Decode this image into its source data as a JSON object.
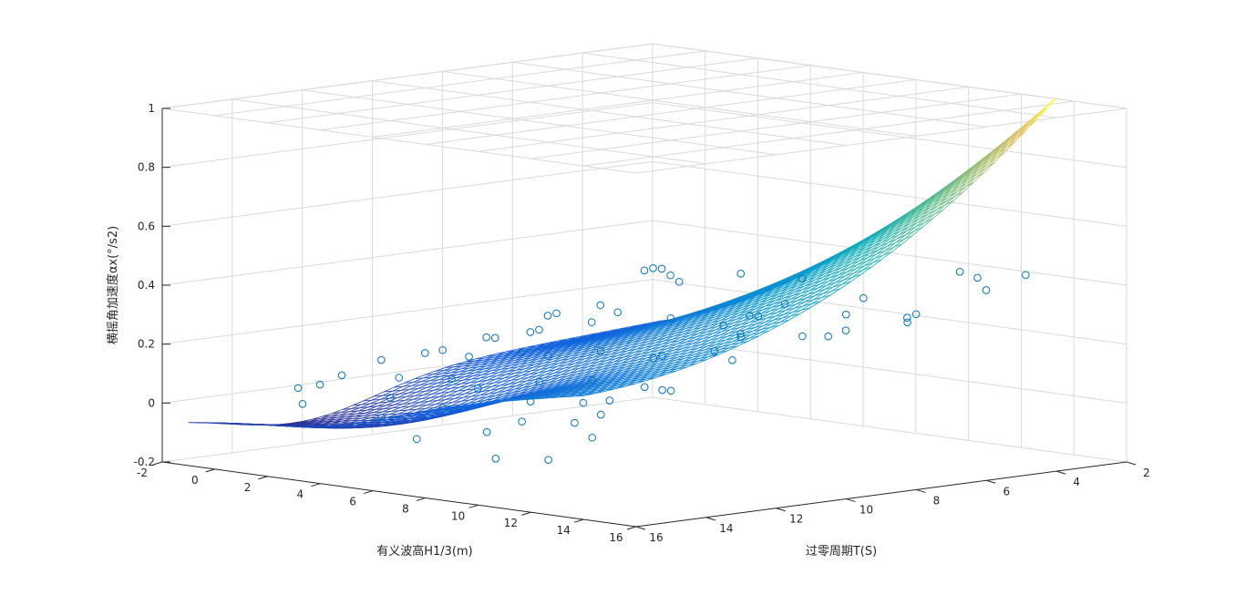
{
  "chart_data": {
    "type": "surface",
    "grid": true,
    "x_axis": {
      "label": "有义波高H1/3(m)",
      "range": [
        -2,
        16
      ],
      "ticks": [
        "-2",
        "0",
        "2",
        "4",
        "6",
        "8",
        "10",
        "12",
        "14",
        "16"
      ]
    },
    "y_axis": {
      "label": "过零周期T(S)",
      "range": [
        2,
        16
      ],
      "ticks": [
        "2",
        "4",
        "6",
        "8",
        "10",
        "12",
        "14",
        "16"
      ]
    },
    "z_axis": {
      "label": "横摇角加速度αx(°/s2)",
      "range": [
        -0.2,
        1
      ],
      "ticks": [
        "-0.2",
        "0",
        "0.2",
        "0.4",
        "0.6",
        "0.8",
        "1"
      ]
    },
    "surface": {
      "x_range": [
        -1,
        14
      ],
      "y_range": [
        2.5,
        16
      ],
      "colormap": "parula",
      "corner_values": {
        "x=-1,y=16": -0.09,
        "x=14,y=16": 0.04,
        "x=14,y=2.5": 1.0,
        "x=-1,y=2.5": 0.12
      }
    },
    "scatter": {
      "marker": "circle",
      "color": "#0072bd",
      "points": [
        [
          8,
          7,
          0.42
        ],
        [
          9,
          6,
          0.4
        ],
        [
          10,
          5,
          0.33
        ],
        [
          10,
          9,
          0.3
        ],
        [
          11,
          8,
          0.37
        ],
        [
          12,
          7,
          0.33
        ],
        [
          13,
          6,
          0.3
        ],
        [
          11,
          12,
          0.15
        ],
        [
          9,
          10,
          0.2
        ],
        [
          7,
          9,
          0.45
        ],
        [
          6,
          8,
          0.43
        ],
        [
          5,
          7,
          0.4
        ],
        [
          4,
          6,
          0.35
        ],
        [
          3,
          5,
          0.3
        ],
        [
          6,
          5,
          0.22
        ],
        [
          7,
          12,
          0.12
        ],
        [
          8,
          13,
          0.08
        ],
        [
          5,
          11,
          0.18
        ],
        [
          4,
          10,
          0.22
        ],
        [
          3,
          9,
          0.2
        ],
        [
          2,
          8,
          0.22
        ],
        [
          1,
          7,
          0.2
        ],
        [
          2,
          11,
          0.15
        ],
        [
          1,
          12,
          0.12
        ],
        [
          0,
          10,
          0.1
        ],
        [
          3,
          13,
          0.1
        ],
        [
          4,
          14,
          0.06
        ],
        [
          6,
          14,
          0.05
        ],
        [
          9,
          15,
          0.02
        ],
        [
          12,
          14,
          0.1
        ],
        [
          13,
          11,
          0.25
        ],
        [
          12,
          10,
          0.3
        ],
        [
          10,
          13,
          0.1
        ],
        [
          11,
          14,
          0.06
        ],
        [
          13,
          13,
          0.18
        ],
        [
          0.5,
          14,
          0.05
        ],
        [
          2,
          15,
          0.03
        ],
        [
          5,
          15,
          0.02
        ],
        [
          7,
          15.5,
          -0.02
        ],
        [
          10,
          15.5,
          -0.05
        ],
        [
          12,
          15.5,
          -0.03
        ],
        [
          13,
          15,
          0.05
        ],
        [
          1,
          9,
          0.15
        ],
        [
          5,
          9,
          0.25
        ],
        [
          8,
          11,
          0.22
        ],
        [
          9,
          12,
          0.15
        ],
        [
          6,
          11,
          0.18
        ],
        [
          3,
          11,
          0.14
        ],
        [
          8,
          9,
          0.3
        ],
        [
          10,
          11,
          0.22
        ],
        [
          11,
          10,
          0.24
        ],
        [
          7,
          6,
          0.25
        ],
        [
          4,
          8,
          0.28
        ],
        [
          2,
          6,
          0.2
        ],
        [
          0,
          8,
          0.12
        ],
        [
          -0.5,
          12,
          0.05
        ],
        [
          0,
          13,
          0.04
        ],
        [
          6,
          13,
          0.1
        ],
        [
          5,
          13,
          0.12
        ],
        [
          9,
          14,
          0.04
        ],
        [
          11,
          13,
          0.12
        ],
        [
          12,
          12,
          0.15
        ],
        [
          13,
          9,
          0.3
        ],
        [
          12,
          5,
          0.3
        ],
        [
          13,
          4,
          0.42
        ],
        [
          12,
          3,
          0.35
        ],
        [
          9,
          3,
          0.22
        ],
        [
          11,
          3,
          0.4
        ],
        [
          8,
          4,
          0.18
        ],
        [
          6,
          3,
          0.12
        ],
        [
          4,
          4,
          0.12
        ],
        [
          13.5,
          3,
          0.42
        ]
      ]
    }
  }
}
